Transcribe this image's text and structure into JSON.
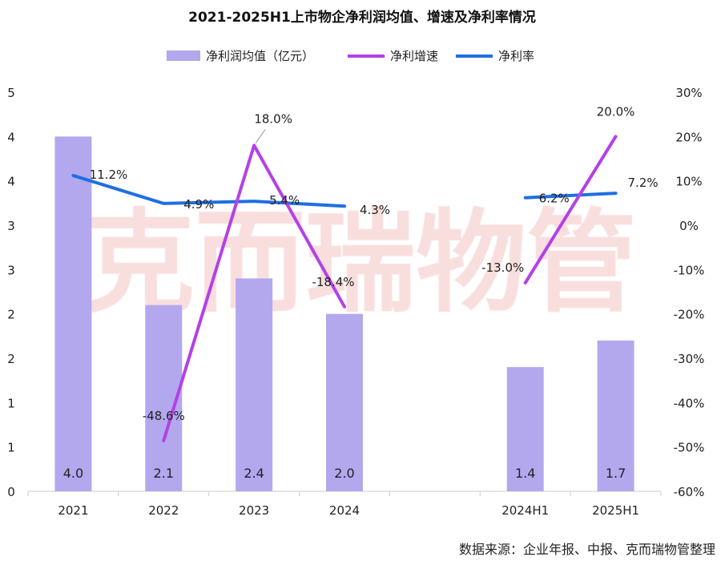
{
  "chart_data": {
    "type": "bar+line",
    "title": "2021-2025H1上市物企净利润均值、增速及净利率情况",
    "categories": [
      "2021",
      "2022",
      "2023",
      "2024",
      "",
      "2024H1",
      "2025H1"
    ],
    "series": [
      {
        "name": "净利润均值（亿元）",
        "type": "bar",
        "axis": "left",
        "color": "#b3a8ee",
        "values": [
          4.0,
          2.1,
          2.4,
          2.0,
          null,
          1.4,
          1.7
        ],
        "labels": [
          "4.0",
          "2.1",
          "2.4",
          "2.0",
          "",
          "1.4",
          "1.7"
        ]
      },
      {
        "name": "净利增速",
        "type": "line",
        "axis": "right",
        "color": "#b441e6",
        "values": [
          null,
          -48.6,
          18.0,
          -18.4,
          null,
          -13.0,
          20.0
        ],
        "labels": [
          "",
          "-48.6%",
          "18.0%",
          "-18.4%",
          "",
          "-13.0%",
          "20.0%"
        ]
      },
      {
        "name": "净利率",
        "type": "line",
        "axis": "right",
        "color": "#1e6fe3",
        "values": [
          11.2,
          4.9,
          5.4,
          4.3,
          null,
          6.2,
          7.2
        ],
        "labels": [
          "11.2%",
          "4.9%",
          "5.4%",
          "4.3%",
          "",
          "6.2%",
          "7.2%"
        ]
      }
    ],
    "left_axis": {
      "ylim": [
        0,
        4.5
      ],
      "tick_labels": [
        "0",
        "1",
        "1",
        "2",
        "2",
        "3",
        "3",
        "4",
        "4",
        "5"
      ]
    },
    "right_axis": {
      "ylim": [
        -60,
        30
      ],
      "tick_labels": [
        "-60%",
        "-50%",
        "-40%",
        "-30%",
        "-20%",
        "-10%",
        "0%",
        "10%",
        "20%",
        "30%"
      ]
    },
    "legend": "top",
    "grid": false
  },
  "watermark": "克而瑞物管",
  "source": "数据来源：企业年报、中报、克而瑞物管整理"
}
